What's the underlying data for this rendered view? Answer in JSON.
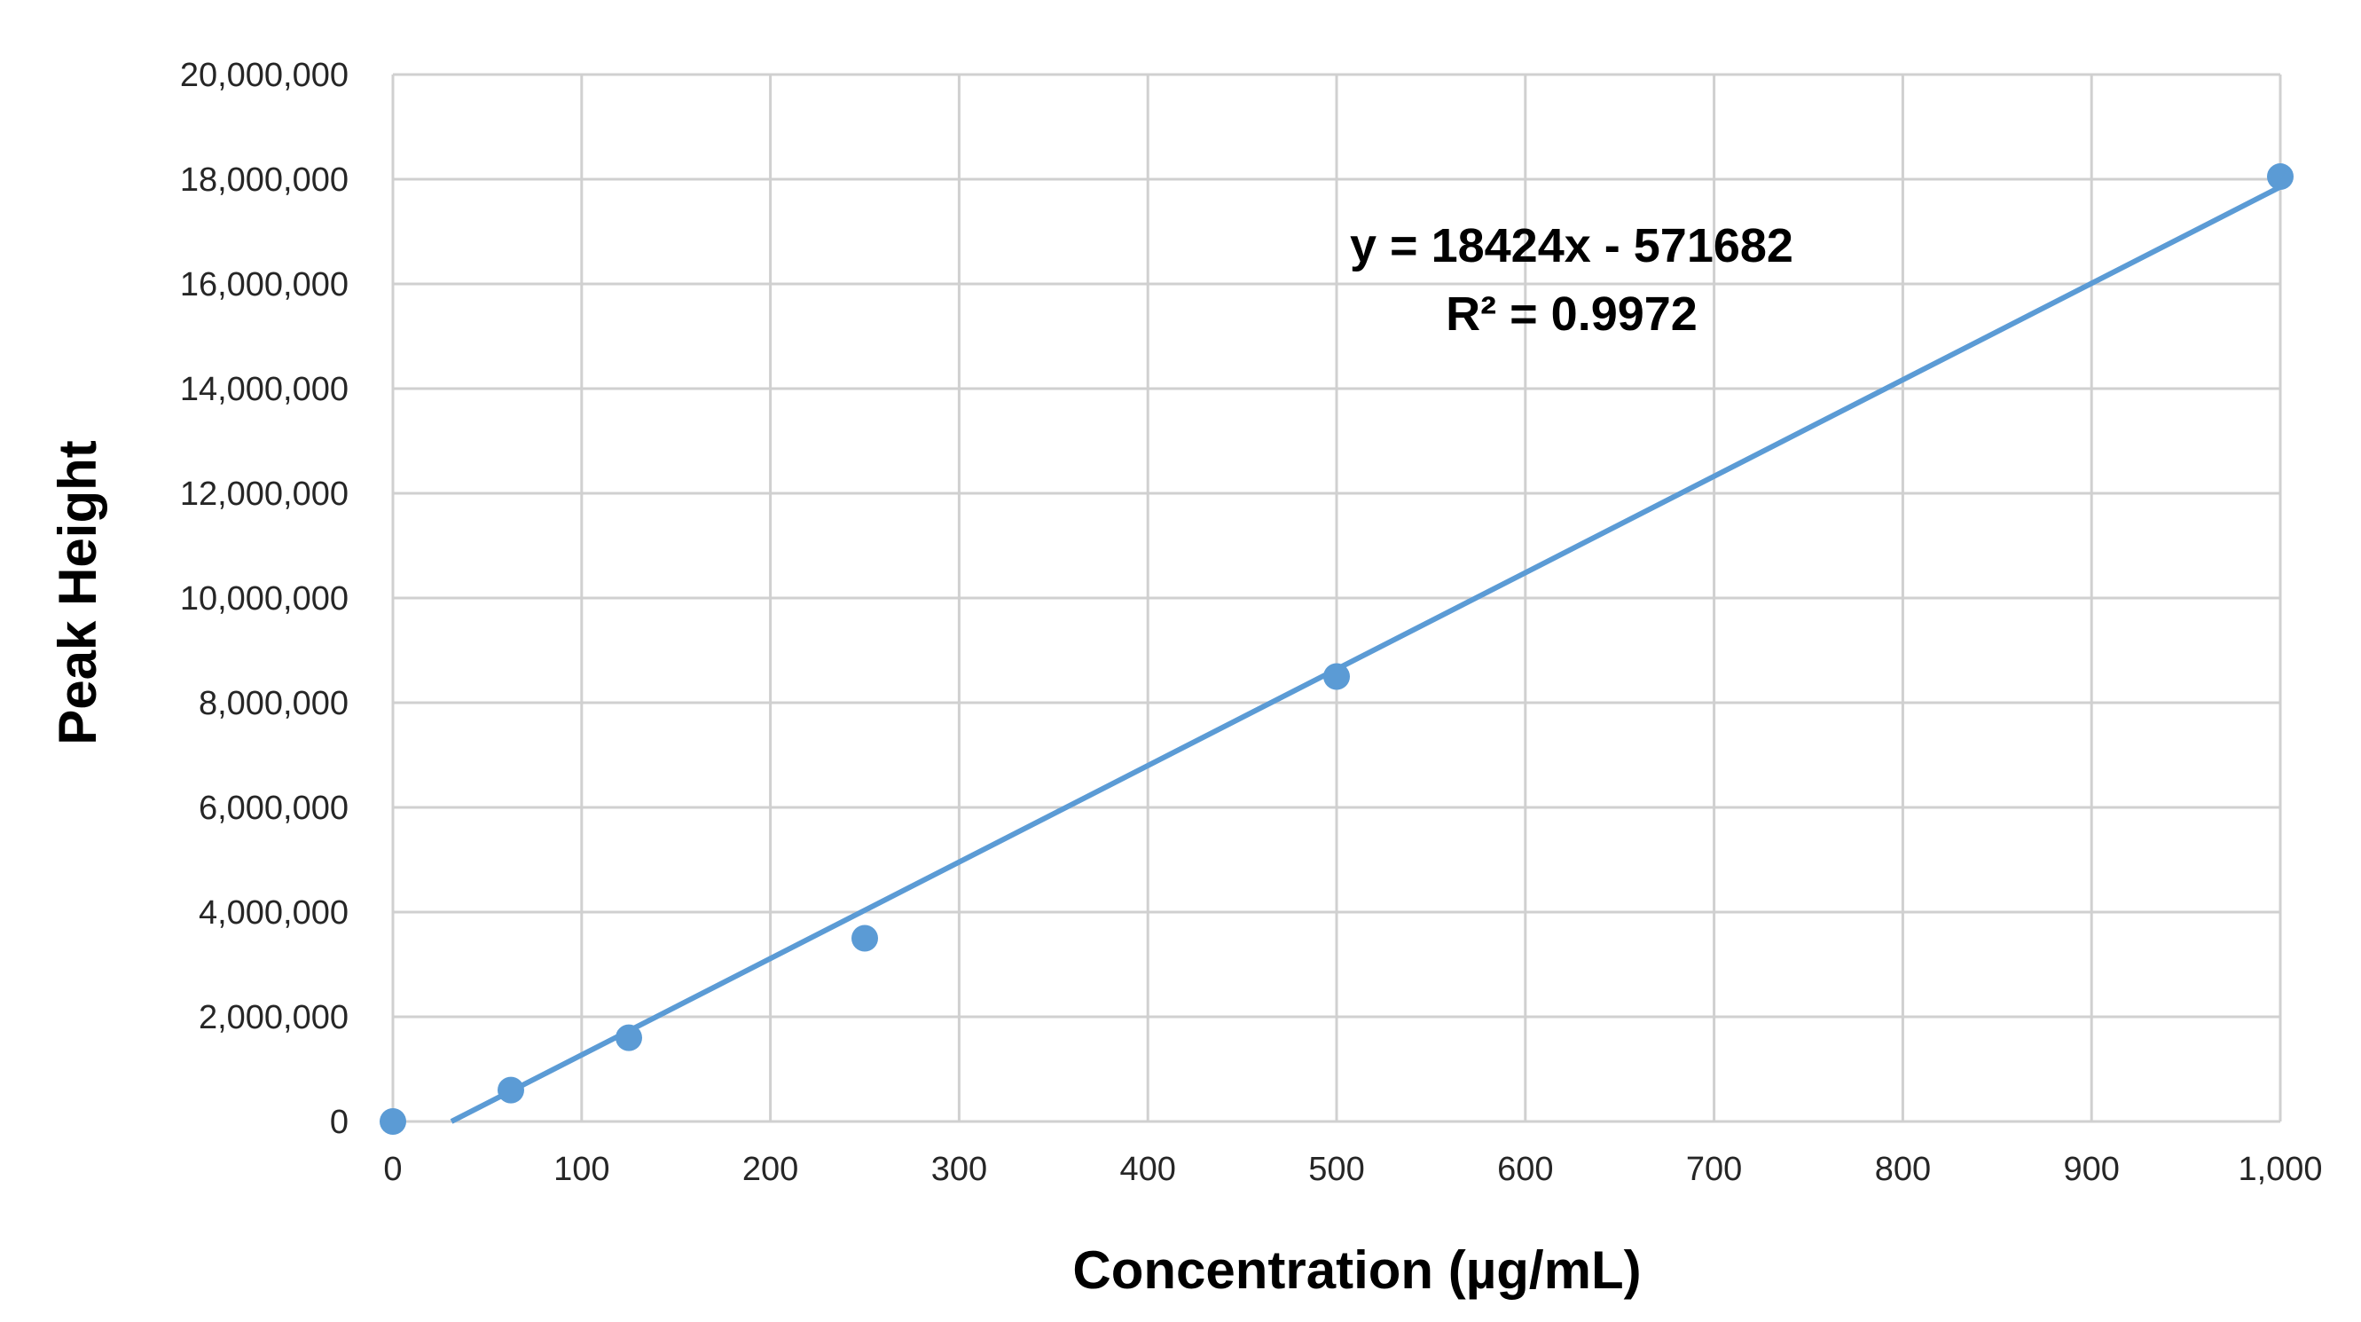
{
  "chart_data": {
    "type": "scatter",
    "title": "",
    "xlabel": "Concentration (µg/mL)",
    "ylabel": "Peak Height",
    "xlim": [
      0,
      1000
    ],
    "ylim": [
      0,
      20000000
    ],
    "x_ticks": [
      0,
      100,
      200,
      300,
      400,
      500,
      600,
      700,
      800,
      900,
      1000
    ],
    "x_tick_labels": [
      "0",
      "100",
      "200",
      "300",
      "400",
      "500",
      "600",
      "700",
      "800",
      "900",
      "1,000"
    ],
    "y_ticks": [
      0,
      2000000,
      4000000,
      6000000,
      8000000,
      10000000,
      12000000,
      14000000,
      16000000,
      18000000,
      20000000
    ],
    "y_tick_labels": [
      "0",
      "2,000,000",
      "4,000,000",
      "6,000,000",
      "8,000,000",
      "10,000,000",
      "12,000,000",
      "14,000,000",
      "16,000,000",
      "18,000,000",
      "20,000,000"
    ],
    "grid": true,
    "legend": "none",
    "series": [
      {
        "points": [
          {
            "x": 0,
            "y": 0
          },
          {
            "x": 62.5,
            "y": 600000
          },
          {
            "x": 125,
            "y": 1600000
          },
          {
            "x": 250,
            "y": 3500000
          },
          {
            "x": 500,
            "y": 8500000
          },
          {
            "x": 1000,
            "y": 18050000
          }
        ],
        "color": "#5b9bd5"
      }
    ],
    "trendline": {
      "type": "linear",
      "slope": 18424,
      "intercept": -571682,
      "equation": "y = 18424x - 571682",
      "r_squared": "R² = 0.9972",
      "color": "#5b9bd5"
    }
  }
}
